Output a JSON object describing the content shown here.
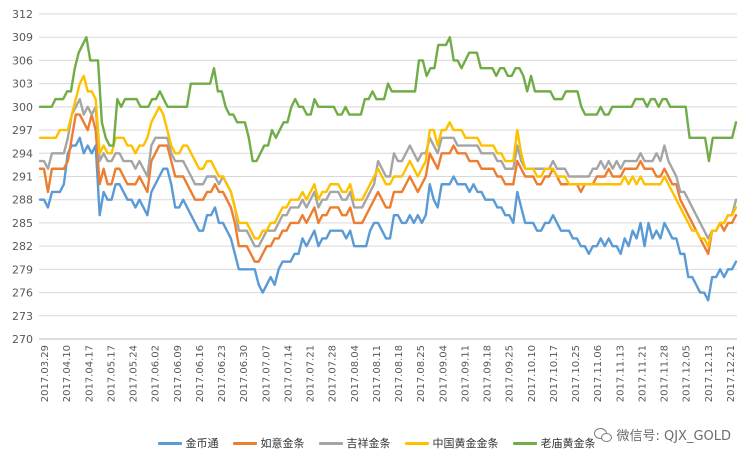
{
  "chart_data": {
    "type": "line",
    "title": "",
    "xlabel": "",
    "ylabel": "",
    "ylim": [
      270,
      312
    ],
    "yticks": [
      270,
      273,
      276,
      279,
      282,
      285,
      288,
      291,
      294,
      297,
      300,
      303,
      306,
      309,
      312
    ],
    "xtick_labels": [
      "2017.03.29",
      "2017.04.10",
      "2017.04.17",
      "2017.05.17",
      "2017.05.24",
      "2017.06.02",
      "2017.06.09",
      "2017.06.16",
      "2017.06.23",
      "2017.06.30",
      "2017.07.07",
      "2017.07.14",
      "2017.07.21",
      "2017.07.28",
      "2017.08.04",
      "2017.08.11",
      "2017.08.18",
      "2017.08.25",
      "2017.09.04",
      "2017.09.11",
      "2017.09.18",
      "2017.09.25",
      "2017.10.10",
      "2017.10.17",
      "2017.10.25",
      "2017.11.06",
      "2017.11.13",
      "2017.11.21",
      "2017.11.28",
      "2017.12.05",
      "2017.12.13",
      "2017.12.21"
    ],
    "grid": "horizontal",
    "legend_position": "bottom",
    "series": [
      {
        "name": "金币通",
        "color": "#5B9BD5",
        "values": [
          288,
          288,
          287,
          289,
          289,
          289,
          290,
          294,
          295,
          295,
          296,
          294,
          295,
          294,
          295,
          286,
          289,
          288,
          288,
          290,
          290,
          289,
          288,
          288,
          287,
          288,
          287,
          286,
          289,
          290,
          291,
          292,
          292,
          290,
          287,
          287,
          288,
          287,
          286,
          285,
          284,
          284,
          286,
          286,
          287,
          285,
          285,
          284,
          283,
          281,
          279,
          279,
          279,
          279,
          279,
          277,
          276,
          277,
          278,
          277,
          279,
          280,
          280,
          280,
          281,
          281,
          283,
          282,
          283,
          284,
          282,
          283,
          283,
          284,
          284,
          284,
          284,
          283,
          284,
          282,
          282,
          282,
          282,
          284,
          285,
          285,
          284,
          283,
          283,
          286,
          286,
          285,
          285,
          286,
          285,
          286,
          285,
          286,
          290,
          288,
          287,
          290,
          290,
          290,
          291,
          290,
          290,
          290,
          289,
          290,
          289,
          289,
          288,
          288,
          288,
          287,
          287,
          286,
          286,
          285,
          289,
          287,
          285,
          285,
          285,
          284,
          284,
          285,
          285,
          286,
          285,
          284,
          284,
          284,
          283,
          283,
          282,
          282,
          281,
          282,
          282,
          283,
          282,
          283,
          282,
          282,
          281,
          283,
          282,
          284,
          283,
          285,
          282,
          285,
          283,
          284,
          283,
          285,
          284,
          283,
          283,
          281,
          281,
          278,
          278,
          277,
          276,
          276,
          275,
          278,
          278,
          279,
          278,
          279,
          279,
          280
        ]
      },
      {
        "name": "如意金条",
        "color": "#ED7D31",
        "values": [
          292,
          292,
          289,
          292,
          292,
          292,
          292,
          293,
          296,
          299,
          299,
          298,
          297,
          299,
          297,
          290,
          292,
          290,
          290,
          292,
          292,
          291,
          290,
          290,
          290,
          291,
          290,
          289,
          293,
          294,
          295,
          295,
          295,
          293,
          291,
          291,
          291,
          290,
          289,
          288,
          288,
          288,
          289,
          289,
          290,
          289,
          289,
          288,
          287,
          285,
          282,
          282,
          282,
          281,
          280,
          280,
          281,
          282,
          282,
          283,
          283,
          284,
          284,
          285,
          285,
          285,
          286,
          285,
          286,
          287,
          285,
          286,
          286,
          287,
          287,
          287,
          286,
          286,
          287,
          285,
          285,
          285,
          286,
          287,
          288,
          289,
          288,
          287,
          287,
          289,
          289,
          289,
          290,
          291,
          290,
          289,
          290,
          291,
          294,
          293,
          292,
          294,
          294,
          294,
          295,
          294,
          294,
          294,
          293,
          293,
          293,
          292,
          292,
          292,
          292,
          291,
          291,
          290,
          290,
          290,
          293,
          292,
          291,
          291,
          291,
          290,
          290,
          291,
          291,
          292,
          291,
          290,
          290,
          290,
          290,
          290,
          289,
          290,
          290,
          290,
          291,
          291,
          291,
          292,
          291,
          291,
          291,
          292,
          292,
          292,
          292,
          293,
          292,
          292,
          292,
          291,
          291,
          292,
          291,
          290,
          290,
          288,
          287,
          286,
          285,
          284,
          283,
          282,
          281,
          284,
          284,
          285,
          284,
          285,
          285,
          286
        ]
      },
      {
        "name": "吉祥金条",
        "color": "#A5A5A5",
        "values": [
          293,
          293,
          292,
          294,
          294,
          294,
          294,
          296,
          299,
          300,
          301,
          299,
          300,
          299,
          300,
          293,
          294,
          293,
          293,
          294,
          294,
          293,
          293,
          293,
          292,
          293,
          292,
          291,
          295,
          296,
          296,
          296,
          296,
          294,
          293,
          293,
          293,
          292,
          291,
          290,
          290,
          290,
          291,
          291,
          291,
          290,
          291,
          290,
          289,
          287,
          284,
          284,
          284,
          283,
          282,
          282,
          283,
          284,
          284,
          284,
          285,
          286,
          286,
          287,
          287,
          287,
          288,
          287,
          288,
          289,
          287,
          288,
          288,
          289,
          289,
          289,
          288,
          288,
          289,
          287,
          287,
          287,
          288,
          289,
          290,
          293,
          292,
          291,
          291,
          294,
          293,
          293,
          294,
          295,
          294,
          293,
          294,
          294,
          296,
          295,
          294,
          296,
          296,
          296,
          296,
          295,
          295,
          295,
          295,
          295,
          295,
          294,
          294,
          294,
          294,
          293,
          293,
          292,
          292,
          292,
          295,
          293,
          292,
          292,
          292,
          292,
          292,
          292,
          292,
          293,
          292,
          292,
          292,
          291,
          291,
          291,
          291,
          291,
          291,
          292,
          292,
          293,
          292,
          293,
          292,
          293,
          292,
          293,
          293,
          293,
          293,
          294,
          293,
          293,
          293,
          294,
          293,
          295,
          293,
          292,
          291,
          289,
          289,
          288,
          287,
          286,
          285,
          284,
          283,
          284,
          284,
          285,
          285,
          286,
          286,
          288
        ]
      },
      {
        "name": "中国黄金金条",
        "color": "#FFC000",
        "values": [
          296,
          296,
          296,
          296,
          296,
          297,
          297,
          297,
          299,
          301,
          303,
          304,
          302,
          302,
          301,
          294,
          295,
          294,
          294,
          296,
          296,
          296,
          295,
          295,
          294,
          295,
          295,
          296,
          298,
          299,
          300,
          299,
          297,
          295,
          294,
          294,
          295,
          295,
          294,
          293,
          292,
          292,
          293,
          293,
          292,
          291,
          291,
          290,
          289,
          287,
          285,
          285,
          285,
          284,
          283,
          283,
          284,
          284,
          285,
          285,
          286,
          287,
          287,
          288,
          288,
          288,
          289,
          288,
          289,
          290,
          288,
          289,
          289,
          290,
          290,
          290,
          289,
          289,
          290,
          288,
          288,
          288,
          289,
          290,
          291,
          292,
          291,
          290,
          290,
          291,
          291,
          291,
          292,
          293,
          292,
          291,
          292,
          293,
          297,
          297,
          295,
          297,
          297,
          298,
          297,
          297,
          297,
          296,
          296,
          296,
          296,
          295,
          295,
          295,
          295,
          294,
          294,
          293,
          293,
          293,
          297,
          294,
          292,
          292,
          292,
          291,
          291,
          292,
          292,
          292,
          291,
          291,
          291,
          290,
          290,
          290,
          290,
          290,
          290,
          290,
          290,
          290,
          290,
          290,
          290,
          290,
          290,
          291,
          290,
          291,
          290,
          291,
          290,
          290,
          290,
          290,
          290,
          291,
          290,
          289,
          288,
          287,
          286,
          285,
          284,
          284,
          283,
          283,
          282,
          284,
          284,
          285,
          285,
          286,
          286,
          287
        ]
      },
      {
        "name": "老庙黄金条",
        "color": "#70AD47",
        "values": [
          300,
          300,
          300,
          300,
          301,
          301,
          301,
          302,
          302,
          305,
          307,
          308,
          309,
          306,
          306,
          306,
          298,
          296,
          295,
          295,
          301,
          300,
          301,
          301,
          301,
          301,
          300,
          300,
          300,
          301,
          301,
          302,
          301,
          300,
          300,
          300,
          300,
          300,
          300,
          303,
          303,
          303,
          303,
          303,
          303,
          305,
          302,
          302,
          300,
          299,
          299,
          298,
          298,
          298,
          296,
          293,
          293,
          294,
          295,
          295,
          297,
          296,
          297,
          298,
          298,
          300,
          301,
          300,
          300,
          299,
          299,
          301,
          300,
          300,
          300,
          300,
          300,
          299,
          299,
          300,
          299,
          299,
          299,
          299,
          301,
          301,
          302,
          301,
          301,
          301,
          303,
          302,
          302,
          302,
          302,
          302,
          302,
          302,
          306,
          306,
          304,
          305,
          305,
          308,
          308,
          308,
          309,
          306,
          306,
          305,
          306,
          307,
          307,
          307,
          305,
          305,
          305,
          305,
          304,
          305,
          305,
          304,
          304,
          305,
          305,
          304,
          302,
          304,
          302,
          302,
          302,
          302,
          302,
          301,
          301,
          301,
          302,
          302,
          302,
          302,
          300,
          299,
          299,
          299,
          299,
          300,
          299,
          299,
          300,
          300,
          300,
          300,
          300,
          300,
          301,
          301,
          301,
          300,
          301,
          301,
          300,
          301,
          301,
          300,
          300,
          300,
          300,
          300,
          296,
          296,
          296,
          296,
          296,
          293,
          296,
          296,
          296,
          296,
          296,
          296,
          298
        ]
      }
    ]
  },
  "watermark": {
    "text": "微信号: QJX_GOLD",
    "icon": "wechat-icon"
  }
}
